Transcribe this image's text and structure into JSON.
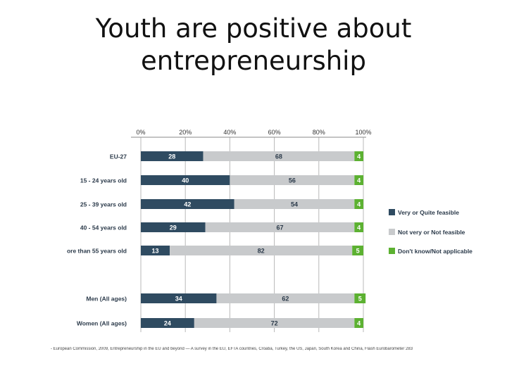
{
  "slide": {
    "title_line1": "Youth are positive about",
    "title_line2": "entrepreneurship"
  },
  "chart_data": {
    "type": "bar",
    "stacked": true,
    "orientation": "horizontal",
    "categories": [
      "EU-27",
      "15 - 24 years old",
      "25 - 39 years old",
      "40 - 54 years old",
      "ore than 55 years old",
      "Men (All ages)",
      "Women (All ages)"
    ],
    "series": [
      {
        "name": "Very or Quite feasible",
        "values": [
          28,
          40,
          42,
          29,
          13,
          34,
          24
        ],
        "color": "#2f4b61"
      },
      {
        "name": "Not very or Not feasible",
        "values": [
          68,
          56,
          54,
          67,
          82,
          62,
          72
        ],
        "color": "#c8cacc"
      },
      {
        "name": "Don't know/Not applicable",
        "values": [
          4,
          4,
          4,
          4,
          5,
          5,
          4
        ],
        "color": "#5cb131"
      }
    ],
    "x_ticks": [
      "0%",
      "20%",
      "40%",
      "60%",
      "80%",
      "100%"
    ],
    "xlim": [
      0,
      100
    ],
    "grid": true,
    "legend_position": "right"
  },
  "source": "- European Commission, 2009, Entrepreneurship in the EU and beyond — A survey in the EU, EFTA countries, Croatia, Turkey, the US, Japan, South Korea and China, Flash Eurobarometer 283"
}
